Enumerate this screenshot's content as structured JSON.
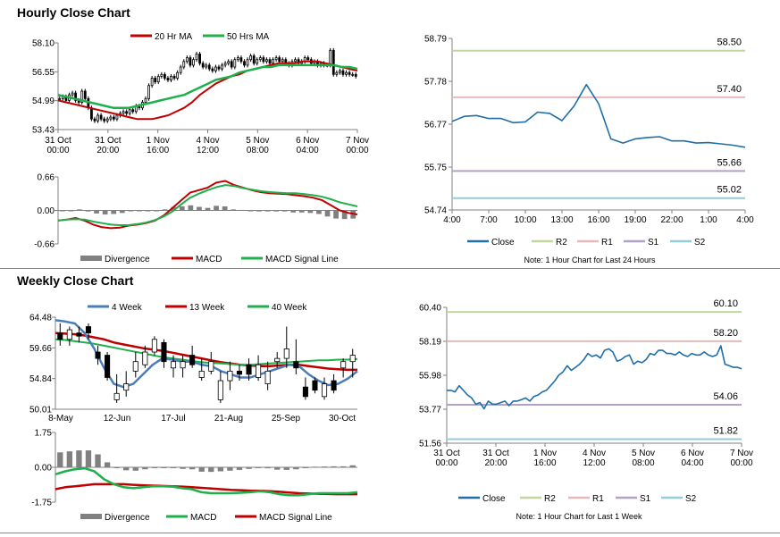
{
  "sections": {
    "hourly_title": "Hourly Close Chart",
    "weekly_title": "Weekly Close Chart"
  },
  "colors": {
    "close": "#1f6ea8",
    "ma_red": "#c00000",
    "ma_green": "#1fb04c",
    "w4_blue": "#4a7ebb",
    "divergence": "#808080",
    "R2": "#c3d69b",
    "R1": "#e6b9b8",
    "S1": "#b3a2c7",
    "S2": "#93cddd",
    "pivot_r2": "#c3d69b"
  },
  "chart_data": [
    {
      "id": "hourly_price",
      "type": "candlestick",
      "legend": [
        "20 Hr MA",
        "50 Hrs MA"
      ],
      "legend_position": "top",
      "ylim": [
        53.43,
        58.1
      ],
      "yticks": [
        "58.10",
        "56.55",
        "54.99",
        "53.43"
      ],
      "xticks": [
        "31 Oct\n00:00",
        "31 Oct\n20:00",
        "1 Nov\n16:00",
        "4 Nov\n12:00",
        "5 Nov\n08:00",
        "6 Nov\n04:00",
        "7 Nov\n00:00"
      ],
      "close": [
        55.1,
        55.2,
        55.0,
        55.3,
        55.4,
        55.0,
        54.9,
        55.5,
        55.1,
        54.6,
        54.0,
        53.9,
        54.2,
        54.0,
        53.9,
        54.0,
        54.1,
        54.0,
        54.2,
        54.3,
        54.4,
        54.3,
        54.5,
        54.4,
        54.7,
        54.6,
        54.9,
        55.1,
        55.8,
        56.2,
        56.0,
        56.3,
        56.4,
        56.2,
        56.1,
        56.3,
        56.2,
        56.5,
        56.8,
        57.1,
        57.3,
        56.9,
        57.2,
        57.5,
        57.0,
        56.8,
        56.9,
        56.7,
        56.6,
        56.8,
        56.7,
        56.9,
        57.0,
        57.1,
        56.8,
        57.2,
        57.3,
        57.1,
        56.9,
        57.2,
        57.4,
        57.0,
        57.2,
        57.3,
        57.1,
        57.2,
        57.0,
        57.2,
        57.3,
        57.1,
        57.2,
        57.0,
        56.9,
        57.1,
        57.2,
        57.0,
        57.1,
        57.3,
        57.2,
        57.0,
        57.1,
        56.9,
        57.0,
        56.9,
        56.9,
        57.7,
        56.4,
        56.5,
        56.6,
        56.4,
        56.5,
        56.4,
        56.4,
        56.3
      ],
      "ma20": [
        55.0,
        54.9,
        54.8,
        54.7,
        54.6,
        54.5,
        54.4,
        54.3,
        54.2,
        54.1,
        54.0,
        54.0,
        54.0,
        54.1,
        54.2,
        54.4,
        54.6,
        54.9,
        55.3,
        55.6,
        55.9,
        56.1,
        56.3,
        56.4,
        56.6,
        56.7,
        56.8,
        56.9,
        57.0,
        57.0,
        57.0,
        57.1,
        57.1,
        57.1,
        57.0,
        56.9,
        56.8,
        56.7,
        56.6
      ],
      "ma50": [
        55.3,
        55.2,
        55.1,
        55.0,
        54.9,
        54.8,
        54.7,
        54.6,
        54.6,
        54.6,
        54.7,
        54.8,
        54.9,
        55.0,
        55.1,
        55.2,
        55.3,
        55.5,
        55.7,
        55.9,
        56.1,
        56.2,
        56.3,
        56.5,
        56.6,
        56.7,
        56.8,
        56.8,
        56.9,
        56.9,
        56.9,
        56.9,
        56.9,
        56.9,
        56.9,
        56.9,
        56.8,
        56.8,
        56.7
      ]
    },
    {
      "id": "hourly_macd",
      "type": "line",
      "legend": [
        "Divergence",
        "MACD",
        "MACD Signal Line"
      ],
      "ylim": [
        -0.66,
        0.66
      ],
      "yticks": [
        "0.66",
        "0.00",
        "-0.66"
      ],
      "macd": [
        -0.2,
        -0.18,
        -0.15,
        -0.2,
        -0.28,
        -0.33,
        -0.35,
        -0.34,
        -0.3,
        -0.28,
        -0.25,
        -0.2,
        -0.1,
        0.05,
        0.2,
        0.35,
        0.4,
        0.45,
        0.55,
        0.58,
        0.5,
        0.45,
        0.4,
        0.36,
        0.34,
        0.33,
        0.32,
        0.3,
        0.28,
        0.25,
        0.2,
        0.1,
        0.0,
        -0.05,
        -0.08
      ],
      "signal": [
        -0.2,
        -0.18,
        -0.17,
        -0.18,
        -0.22,
        -0.25,
        -0.28,
        -0.29,
        -0.29,
        -0.27,
        -0.24,
        -0.19,
        -0.12,
        -0.02,
        0.12,
        0.25,
        0.33,
        0.4,
        0.46,
        0.5,
        0.48,
        0.44,
        0.41,
        0.38,
        0.36,
        0.35,
        0.34,
        0.34,
        0.32,
        0.3,
        0.27,
        0.22,
        0.16,
        0.12,
        0.08
      ],
      "divergence": [
        0.0,
        0.0,
        0.02,
        -0.02,
        -0.06,
        -0.08,
        -0.07,
        -0.05,
        -0.01,
        -0.01,
        -0.01,
        -0.01,
        0.02,
        0.07,
        0.08,
        0.1,
        0.07,
        0.05,
        0.09,
        0.08,
        0.02,
        0.01,
        -0.01,
        -0.02,
        -0.02,
        -0.02,
        -0.02,
        -0.04,
        -0.04,
        -0.05,
        -0.07,
        -0.12,
        -0.16,
        -0.17,
        -0.16
      ]
    },
    {
      "id": "hourly_pivot",
      "type": "line",
      "legend": [
        "Close",
        "R2",
        "R1",
        "S1",
        "S2"
      ],
      "note": "Note: 1 Hour Chart for Last 24 Hours",
      "ylim": [
        54.74,
        58.79
      ],
      "yticks": [
        "58.79",
        "57.78",
        "56.77",
        "55.75",
        "54.74"
      ],
      "xticks": [
        "4:00",
        "7:00",
        "10:00",
        "13:00",
        "16:00",
        "19:00",
        "22:00",
        "1:00",
        "4:00"
      ],
      "levels": {
        "R2": 58.5,
        "R1": 57.4,
        "S1": 55.66,
        "S2": 55.02
      },
      "level_labels": {
        "R2": "58.50",
        "R1": "57.40",
        "S1": "55.66",
        "S2": "55.02"
      },
      "close": [
        56.83,
        56.95,
        56.97,
        56.9,
        56.9,
        56.8,
        56.82,
        57.05,
        57.02,
        56.85,
        57.2,
        57.7,
        57.25,
        56.42,
        56.32,
        56.42,
        56.45,
        56.47,
        56.37,
        56.37,
        56.32,
        56.33,
        56.3,
        56.27,
        56.22
      ]
    },
    {
      "id": "weekly_price",
      "type": "candlestick",
      "legend": [
        "4 Week",
        "13 Week",
        "40 Week"
      ],
      "legend_position": "top",
      "ylim": [
        50.01,
        64.48
      ],
      "yticks": [
        "64.48",
        "59.66",
        "54.84",
        "50.01"
      ],
      "xticks": [
        "8-May",
        "12-Jun",
        "17-Jul",
        "21-Aug",
        "25-Sep",
        "30-Oct"
      ],
      "open": [
        62.0,
        61.0,
        62.0,
        63.0,
        59.0,
        58.5,
        51.5,
        53.0,
        56.0,
        57.0,
        59.0,
        60.5,
        56.5,
        56.5,
        58.5,
        55.0,
        56.0,
        51.5,
        54.5,
        56.0,
        57.0,
        55.0,
        54.0,
        57.5,
        58.0,
        57.5,
        53.5,
        54.5,
        52.0,
        54.5,
        56.5,
        57.5
      ],
      "close": [
        61.0,
        62.5,
        61.5,
        62.0,
        58.0,
        55.0,
        52.5,
        54.0,
        57.5,
        59.0,
        61.0,
        57.5,
        57.5,
        57.5,
        57.0,
        56.0,
        57.5,
        54.5,
        56.0,
        55.5,
        55.5,
        57.0,
        56.0,
        58.0,
        59.5,
        56.5,
        52.0,
        53.0,
        54.0,
        53.0,
        57.5,
        58.5
      ],
      "high": [
        63.5,
        63.0,
        63.0,
        63.5,
        60.0,
        59.0,
        55.5,
        56.0,
        59.0,
        60.0,
        61.5,
        61.0,
        58.5,
        58.5,
        60.0,
        58.0,
        59.0,
        56.0,
        57.5,
        57.0,
        58.0,
        58.5,
        57.5,
        59.0,
        63.0,
        61.0,
        55.0,
        55.0,
        55.0,
        55.5,
        58.0,
        59.5
      ],
      "low": [
        60.0,
        60.0,
        60.5,
        61.0,
        57.0,
        54.5,
        51.0,
        52.0,
        55.0,
        56.5,
        58.5,
        56.5,
        55.0,
        55.0,
        56.5,
        54.5,
        55.5,
        51.0,
        53.0,
        54.5,
        54.5,
        54.5,
        53.0,
        56.5,
        56.5,
        55.5,
        51.5,
        52.5,
        51.5,
        52.5,
        55.0,
        55.0
      ],
      "w4": [
        64.0,
        63.8,
        63.5,
        62.0,
        59.5,
        56.5,
        54.0,
        53.5,
        54.0,
        55.5,
        57.0,
        58.0,
        57.8,
        57.5,
        57.5,
        57.0,
        56.8,
        56.0,
        55.5,
        55.0,
        55.0,
        55.5,
        56.0,
        56.5,
        57.0,
        56.8,
        55.5,
        54.5,
        53.8,
        54.0,
        54.8,
        56.0
      ],
      "w13": [
        62.0,
        61.9,
        61.8,
        61.6,
        61.3,
        61.0,
        60.5,
        60.2,
        59.9,
        59.6,
        59.4,
        59.2,
        58.9,
        58.6,
        58.3,
        58.0,
        57.7,
        57.4,
        57.2,
        57.0,
        56.9,
        56.8,
        56.8,
        56.9,
        57.0,
        57.0,
        56.8,
        56.6,
        56.4,
        56.3,
        56.2,
        56.2
      ],
      "w40": [
        61.0,
        60.9,
        60.7,
        60.5,
        60.3,
        60.0,
        59.7,
        59.4,
        59.1,
        58.8,
        58.5,
        58.2,
        58.0,
        57.8,
        57.6,
        57.4,
        57.3,
        57.2,
        57.1,
        57.0,
        57.0,
        57.1,
        57.2,
        57.3,
        57.4,
        57.5,
        57.6,
        57.7,
        57.7,
        57.8,
        57.8,
        57.9
      ]
    },
    {
      "id": "weekly_macd",
      "type": "line",
      "legend": [
        "Divergence",
        "MACD",
        "MACD Signal Line"
      ],
      "ylim": [
        -1.75,
        1.75
      ],
      "yticks": [
        "1.75",
        "0.00",
        "-1.75"
      ],
      "macd": [
        -0.35,
        -0.2,
        -0.1,
        -0.05,
        -0.2,
        -0.6,
        -0.85,
        -1.0,
        -1.05,
        -1.0,
        -0.95,
        -0.95,
        -0.97,
        -1.05,
        -1.1,
        -1.25,
        -1.3,
        -1.3,
        -1.3,
        -1.28,
        -1.25,
        -1.2,
        -1.25,
        -1.35,
        -1.4,
        -1.4,
        -1.35,
        -1.3,
        -1.3,
        -1.3,
        -1.3,
        -1.25
      ],
      "signal": [
        -1.1,
        -1.0,
        -0.95,
        -0.9,
        -0.85,
        -0.85,
        -0.85,
        -0.85,
        -0.88,
        -0.9,
        -0.92,
        -0.94,
        -0.95,
        -0.97,
        -1.0,
        -1.03,
        -1.07,
        -1.1,
        -1.13,
        -1.15,
        -1.17,
        -1.18,
        -1.2,
        -1.23,
        -1.27,
        -1.3,
        -1.32,
        -1.33,
        -1.34,
        -1.35,
        -1.35,
        -1.35
      ],
      "divergence": [
        0.75,
        0.8,
        0.85,
        0.85,
        0.65,
        0.25,
        0.0,
        -0.15,
        -0.17,
        -0.1,
        -0.03,
        -0.01,
        -0.02,
        -0.08,
        -0.1,
        -0.22,
        -0.23,
        -0.2,
        -0.17,
        -0.13,
        -0.08,
        -0.02,
        -0.05,
        -0.12,
        -0.13,
        -0.1,
        -0.03,
        0.03,
        0.04,
        0.05,
        0.05,
        0.1
      ]
    },
    {
      "id": "weekly_pivot",
      "type": "line",
      "legend": [
        "Close",
        "R2",
        "R1",
        "S1",
        "S2"
      ],
      "note": "Note: 1 Hour Chart for Last 1 Week",
      "ylim": [
        51.56,
        60.4
      ],
      "yticks": [
        "60.40",
        "58.19",
        "55.98",
        "53.77",
        "51.56"
      ],
      "xticks": [
        "31 Oct\n00:00",
        "31 Oct\n20:00",
        "1 Nov\n16:00",
        "4 Nov\n12:00",
        "5 Nov\n08:00",
        "6 Nov\n04:00",
        "7 Nov\n00:00"
      ],
      "levels": {
        "R2": 60.1,
        "R1": 58.2,
        "S1": 54.06,
        "S2": 51.82
      },
      "level_labels": {
        "R2": "60.10",
        "R1": "58.20",
        "S1": "54.06",
        "S2": "51.82"
      },
      "close": [
        55.0,
        55.0,
        54.9,
        55.3,
        55.0,
        54.7,
        54.5,
        54.1,
        54.2,
        53.8,
        54.3,
        54.1,
        54.1,
        54.2,
        54.3,
        54.0,
        54.3,
        54.3,
        54.4,
        54.5,
        54.3,
        54.6,
        54.7,
        54.9,
        55.0,
        55.3,
        55.6,
        56.0,
        56.2,
        56.6,
        56.3,
        56.5,
        56.7,
        57.0,
        57.4,
        57.2,
        57.3,
        57.1,
        57.6,
        57.7,
        57.5,
        56.9,
        57.0,
        57.2,
        57.3,
        56.7,
        56.9,
        56.8,
        57.0,
        57.4,
        57.3,
        57.6,
        57.6,
        57.4,
        57.4,
        57.3,
        57.5,
        57.3,
        57.2,
        57.4,
        57.3,
        57.3,
        57.5,
        57.3,
        57.2,
        57.3,
        57.9,
        56.7,
        56.6,
        56.5,
        56.5,
        56.4
      ]
    }
  ]
}
